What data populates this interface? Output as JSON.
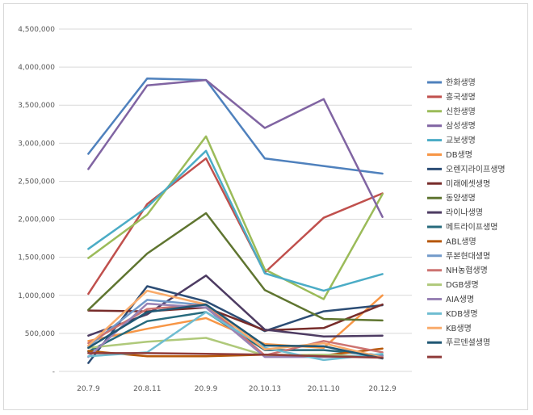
{
  "chart_data": {
    "type": "line",
    "title": "",
    "xlabel": "",
    "ylabel": "",
    "categories": [
      "20.7.9",
      "20.8.11",
      "20.9.9",
      "20.10.13",
      "20.11.10",
      "20.12.9"
    ],
    "ylim": [
      0,
      4500000
    ],
    "yticks": [
      0,
      500000,
      1000000,
      1500000,
      2000000,
      2500000,
      3000000,
      3500000,
      4000000,
      4500000
    ],
    "ytick_labels": [
      "-",
      "500,000",
      "1,000,000",
      "1,500,000",
      "2,000,000",
      "2,500,000",
      "3,000,000",
      "3,500,000",
      "4,000,000",
      "4,500,000"
    ],
    "grid": true,
    "legend_position": "right",
    "series": [
      {
        "name": "한화생명",
        "color": "#4f81bd",
        "values": [
          2860000,
          3850000,
          3830000,
          2800000,
          2700000,
          2600000
        ]
      },
      {
        "name": "흥국생명",
        "color": "#c0504d",
        "values": [
          1020000,
          2200000,
          2800000,
          1300000,
          2020000,
          2340000
        ]
      },
      {
        "name": "신한생명",
        "color": "#9bbb59",
        "values": [
          1490000,
          2060000,
          3090000,
          1340000,
          950000,
          2330000
        ]
      },
      {
        "name": "삼성생명",
        "color": "#8064a2",
        "values": [
          2660000,
          3760000,
          3830000,
          3200000,
          3580000,
          2030000
        ]
      },
      {
        "name": "교보생명",
        "color": "#4bacc6",
        "values": [
          1610000,
          2160000,
          2900000,
          1290000,
          1060000,
          1280000
        ]
      },
      {
        "name": "DB생명",
        "color": "#f79646",
        "values": [
          400000,
          560000,
          700000,
          360000,
          310000,
          1000000
        ]
      },
      {
        "name": "오렌지라이프생명",
        "color": "#2c4d75",
        "values": [
          110000,
          1120000,
          920000,
          530000,
          790000,
          870000
        ]
      },
      {
        "name": "미래에셋생명",
        "color": "#772c2a",
        "values": [
          800000,
          790000,
          840000,
          540000,
          570000,
          880000
        ]
      },
      {
        "name": "동양생명",
        "color": "#5f7530",
        "values": [
          810000,
          1550000,
          2080000,
          1070000,
          690000,
          670000
        ]
      },
      {
        "name": "라이나생명",
        "color": "#4d3b62",
        "values": [
          470000,
          750000,
          1260000,
          550000,
          460000,
          470000
        ]
      },
      {
        "name": "메트라이프생명",
        "color": "#276a7c",
        "values": [
          260000,
          660000,
          780000,
          280000,
          280000,
          210000
        ]
      },
      {
        "name": "ABL생명",
        "color": "#b65708",
        "values": [
          270000,
          200000,
          200000,
          220000,
          210000,
          300000
        ]
      },
      {
        "name": "푸본현대생명",
        "color": "#729aca",
        "values": [
          330000,
          940000,
          870000,
          200000,
          220000,
          190000
        ]
      },
      {
        "name": "NH농협생명",
        "color": "#cd7371",
        "values": [
          370000,
          820000,
          880000,
          210000,
          400000,
          250000
        ]
      },
      {
        "name": "DGB생명",
        "color": "#afc97a",
        "values": [
          310000,
          390000,
          440000,
          210000,
          220000,
          180000
        ]
      },
      {
        "name": "AIA생명",
        "color": "#9983b5",
        "values": [
          190000,
          890000,
          840000,
          190000,
          190000,
          200000
        ]
      },
      {
        "name": "KDB생명",
        "color": "#6fbdd1",
        "values": [
          200000,
          250000,
          780000,
          310000,
          150000,
          230000
        ]
      },
      {
        "name": "KB생명",
        "color": "#f9ab6b",
        "values": [
          340000,
          1060000,
          880000,
          290000,
          370000,
          180000
        ]
      },
      {
        "name": "푸르덴셜생명",
        "color": "#1f5774",
        "values": [
          310000,
          780000,
          880000,
          340000,
          330000,
          170000
        ]
      },
      {
        "name": "",
        "color": "#8f3b3a",
        "values": [
          240000,
          240000,
          230000,
          220000,
          200000,
          180000
        ]
      }
    ]
  }
}
